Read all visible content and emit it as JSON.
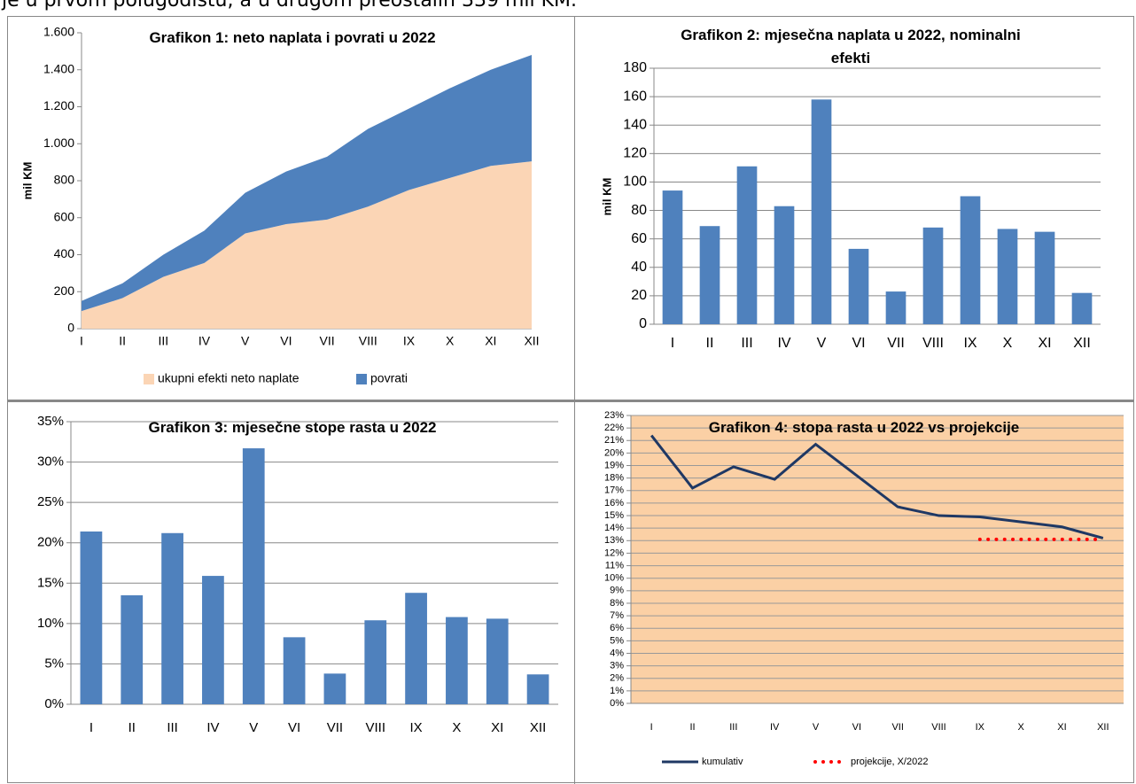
{
  "intro": "je u prvom polugodištu, a u drugom preostalih 339 mil KM.",
  "chart_data": [
    {
      "type": "area",
      "title": "Grafikon 1: neto naplata i povrati u 2022",
      "ylabel": "mil KM",
      "categories": [
        "I",
        "II",
        "III",
        "IV",
        "V",
        "VI",
        "VII",
        "VIII",
        "IX",
        "X",
        "XI",
        "XII"
      ],
      "series": [
        {
          "name": "ukupni efekti neto naplate",
          "color": "#fbd5b5",
          "values": [
            95,
            165,
            280,
            355,
            515,
            565,
            590,
            660,
            750,
            815,
            880,
            905
          ]
        },
        {
          "name": "povrati",
          "color": "#4f81bd",
          "values": [
            55,
            80,
            120,
            175,
            220,
            285,
            340,
            420,
            440,
            485,
            520,
            575
          ]
        }
      ],
      "ylim": [
        0,
        1600
      ],
      "yticks": [
        0,
        200,
        400,
        600,
        800,
        {
          "value": 1000,
          "label": "1.000"
        },
        {
          "value": 1200,
          "label": "1.200"
        },
        {
          "value": 1400,
          "label": "1.400"
        },
        {
          "value": 1600,
          "label": "1.600"
        }
      ],
      "grid": false,
      "legend": "bottom"
    },
    {
      "type": "bar",
      "title": "Grafikon 2: mjesečna naplata u 2022, nominalni efekti",
      "ylabel": "mil KM",
      "categories": [
        "I",
        "II",
        "III",
        "IV",
        "V",
        "VI",
        "VII",
        "VIII",
        "IX",
        "X",
        "XI",
        "XII"
      ],
      "values": [
        94,
        69,
        111,
        83,
        158,
        53,
        23,
        68,
        90,
        67,
        65,
        22
      ],
      "color": "#4f81bd",
      "ylim": [
        0,
        180
      ],
      "yticks": [
        0,
        20,
        40,
        60,
        80,
        100,
        120,
        140,
        160,
        180
      ],
      "grid": true
    },
    {
      "type": "bar",
      "title": "Grafikon 3: mjesečne stope rasta u 2022",
      "categories": [
        "I",
        "II",
        "III",
        "IV",
        "V",
        "VI",
        "VII",
        "VIII",
        "IX",
        "X",
        "XI",
        "XII"
      ],
      "values": [
        21.4,
        13.5,
        21.2,
        15.9,
        31.7,
        8.3,
        3.8,
        10.4,
        13.8,
        10.8,
        10.6,
        3.7
      ],
      "color": "#4f81bd",
      "ylim": [
        0,
        35
      ],
      "yticks": [
        {
          "value": 0,
          "label": "0%"
        },
        {
          "value": 5,
          "label": "5%"
        },
        {
          "value": 10,
          "label": "10%"
        },
        {
          "value": 15,
          "label": "15%"
        },
        {
          "value": 20,
          "label": "20%"
        },
        {
          "value": 25,
          "label": "25%"
        },
        {
          "value": 30,
          "label": "30%"
        },
        {
          "value": 35,
          "label": "35%"
        }
      ],
      "grid": true
    },
    {
      "type": "line",
      "title": "Grafikon 4: stopa rasta u 2022 vs projekcije",
      "categories": [
        "I",
        "II",
        "III",
        "IV",
        "V",
        "VI",
        "VII",
        "VIII",
        "IX",
        "X",
        "XI",
        "XII"
      ],
      "series": [
        {
          "name": "kumulativ",
          "color": "#1f3864",
          "values": [
            21.4,
            17.2,
            18.9,
            17.9,
            20.7,
            18.2,
            15.7,
            15.0,
            14.9,
            14.5,
            14.1,
            13.2
          ]
        },
        {
          "name": "projekcije, X/2022",
          "color": "#ff0000",
          "dash": "dotted",
          "values": [
            null,
            null,
            null,
            null,
            null,
            null,
            null,
            null,
            13.1,
            13.1,
            13.1,
            13.1
          ]
        }
      ],
      "ylim": [
        0,
        23
      ],
      "yticks": [
        {
          "value": 0,
          "label": "0%"
        },
        {
          "value": 1,
          "label": "1%"
        },
        {
          "value": 2,
          "label": "2%"
        },
        {
          "value": 3,
          "label": "3%"
        },
        {
          "value": 4,
          "label": "4%"
        },
        {
          "value": 5,
          "label": "5%"
        },
        {
          "value": 6,
          "label": "6%"
        },
        {
          "value": 7,
          "label": "7%"
        },
        {
          "value": 8,
          "label": "8%"
        },
        {
          "value": 9,
          "label": "9%"
        },
        {
          "value": 10,
          "label": "10%"
        },
        {
          "value": 11,
          "label": "11%"
        },
        {
          "value": 12,
          "label": "12%"
        },
        {
          "value": 13,
          "label": "13%"
        },
        {
          "value": 14,
          "label": "14%"
        },
        {
          "value": 15,
          "label": "15%"
        },
        {
          "value": 16,
          "label": "16%"
        },
        {
          "value": 17,
          "label": "17%"
        },
        {
          "value": 18,
          "label": "18%"
        },
        {
          "value": 19,
          "label": "19%"
        },
        {
          "value": 20,
          "label": "20%"
        },
        {
          "value": 21,
          "label": "21%"
        },
        {
          "value": 22,
          "label": "22%"
        },
        {
          "value": 23,
          "label": "23%"
        }
      ],
      "grid": true,
      "background": "#fbd0a5",
      "legend": "bottom"
    }
  ]
}
